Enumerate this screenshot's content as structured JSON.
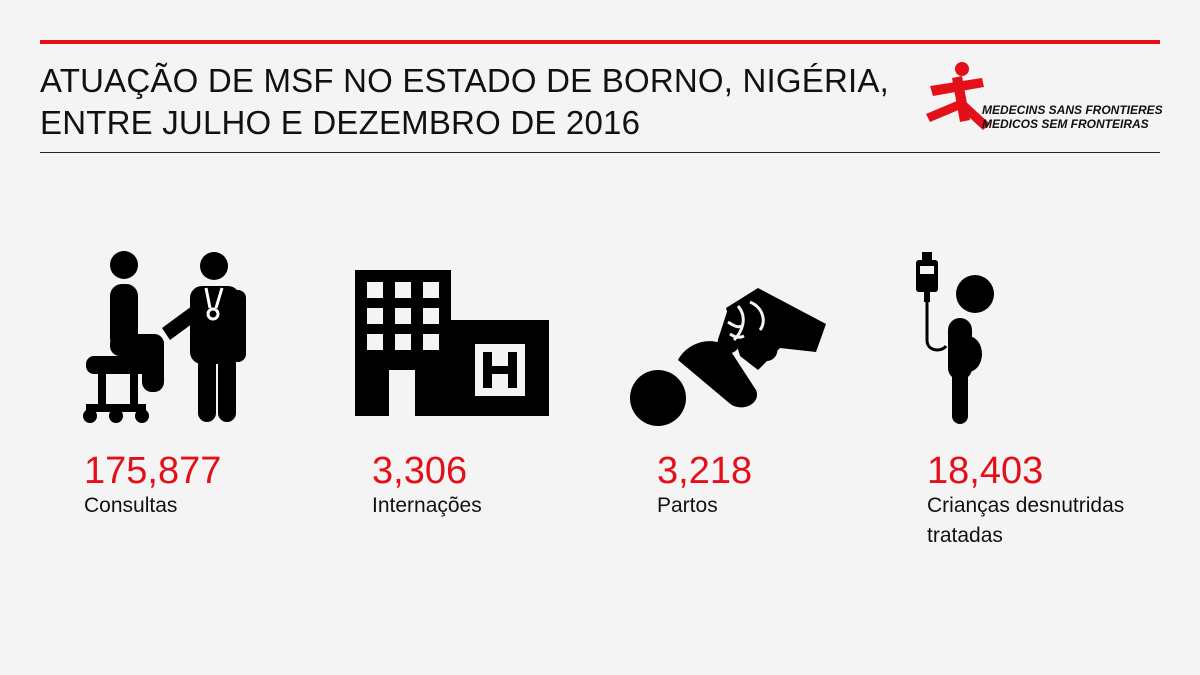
{
  "header": {
    "title_line1": "ATUAÇÃO DE MSF NO ESTADO DE BORNO, NIGÉRIA,",
    "title_line2": "ENTRE JULHO E DEZEMBRO DE 2016"
  },
  "logo": {
    "line1": "MEDECINS SANS FRONTIERES",
    "line2": "MEDICOS SEM FRONTEIRAS",
    "icon": "msf-running-figure-icon"
  },
  "stats": [
    {
      "value": "175,877",
      "label": "Consultas",
      "icon": "doctor-patient-icon"
    },
    {
      "value": "3,306",
      "label": "Internações",
      "icon": "hospital-icon"
    },
    {
      "value": "3,218",
      "label": "Partos",
      "icon": "childbirth-icon"
    },
    {
      "value": "18,403",
      "label": "Crianças desnutridas tratadas",
      "icon": "malnourished-child-iv-icon"
    }
  ],
  "colors": {
    "accent": "#e3101a",
    "text": "#111111",
    "background": "#f4f4f4"
  }
}
